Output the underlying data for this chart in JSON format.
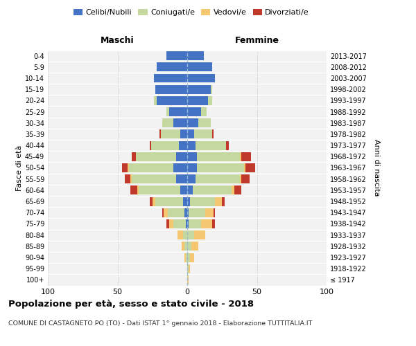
{
  "age_groups": [
    "100+",
    "95-99",
    "90-94",
    "85-89",
    "80-84",
    "75-79",
    "70-74",
    "65-69",
    "60-64",
    "55-59",
    "50-54",
    "45-49",
    "40-44",
    "35-39",
    "30-34",
    "25-29",
    "20-24",
    "15-19",
    "10-14",
    "5-9",
    "0-4"
  ],
  "birth_years": [
    "≤ 1917",
    "1918-1922",
    "1923-1927",
    "1928-1932",
    "1933-1937",
    "1938-1942",
    "1943-1947",
    "1948-1952",
    "1953-1957",
    "1958-1962",
    "1963-1967",
    "1968-1972",
    "1973-1977",
    "1978-1982",
    "1983-1987",
    "1988-1992",
    "1993-1997",
    "1998-2002",
    "2003-2007",
    "2008-2012",
    "2013-2017"
  ],
  "male_celibi": [
    0,
    0,
    0,
    0,
    0,
    1,
    2,
    3,
    5,
    8,
    10,
    8,
    6,
    5,
    10,
    13,
    22,
    23,
    24,
    22,
    15
  ],
  "male_coniugati": [
    0,
    0,
    1,
    2,
    3,
    9,
    12,
    20,
    30,
    32,
    32,
    29,
    20,
    14,
    8,
    2,
    2,
    0,
    0,
    0,
    0
  ],
  "male_vedovi": [
    0,
    0,
    1,
    2,
    4,
    3,
    3,
    2,
    1,
    1,
    1,
    0,
    0,
    0,
    0,
    0,
    0,
    0,
    0,
    0,
    0
  ],
  "male_divorziati": [
    0,
    0,
    0,
    0,
    0,
    2,
    1,
    2,
    5,
    4,
    4,
    3,
    1,
    1,
    0,
    0,
    0,
    0,
    0,
    0,
    0
  ],
  "female_celibi": [
    0,
    0,
    0,
    0,
    0,
    1,
    1,
    2,
    4,
    6,
    7,
    7,
    6,
    5,
    8,
    10,
    15,
    17,
    20,
    18,
    12
  ],
  "female_coniugati": [
    0,
    1,
    2,
    3,
    5,
    9,
    12,
    18,
    28,
    32,
    34,
    31,
    22,
    13,
    9,
    4,
    3,
    1,
    0,
    0,
    0
  ],
  "female_vedovi": [
    1,
    1,
    3,
    5,
    8,
    8,
    6,
    5,
    2,
    1,
    1,
    1,
    0,
    0,
    0,
    0,
    0,
    0,
    0,
    0,
    0
  ],
  "female_divorziati": [
    0,
    0,
    0,
    0,
    0,
    2,
    1,
    2,
    5,
    6,
    7,
    7,
    2,
    1,
    0,
    0,
    0,
    0,
    0,
    0,
    0
  ],
  "color_celibi": "#4472c4",
  "color_coniugati": "#c5d8a0",
  "color_vedovi": "#f5c771",
  "color_divorziati": "#c0392b",
  "title": "Popolazione per età, sesso e stato civile - 2018",
  "subtitle": "COMUNE DI CASTAGNETO PO (TO) - Dati ISTAT 1° gennaio 2018 - Elaborazione TUTTITALIA.IT",
  "label_maschi": "Maschi",
  "label_femmine": "Femmine",
  "ylabel_left": "Fasce di età",
  "ylabel_right": "Anni di nascita",
  "xlim": 100,
  "bg_color": "#f2f2f2",
  "grid_color": "#cccccc"
}
